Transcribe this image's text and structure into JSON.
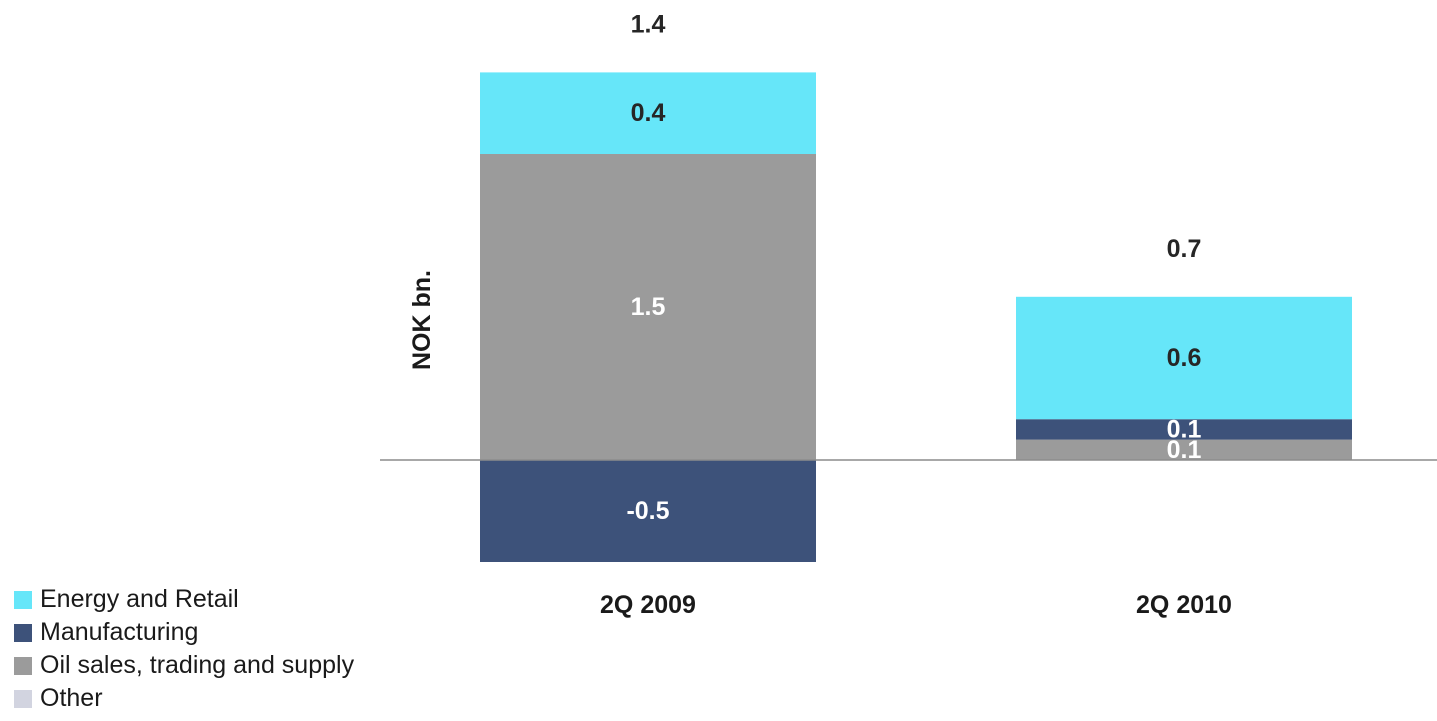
{
  "chart_data": {
    "type": "bar",
    "stacked": true,
    "title": "",
    "xlabel": "",
    "ylabel": "NOK bn.",
    "ylim": [
      -0.75,
      1.65
    ],
    "grid": false,
    "legend_position": "bottom-left",
    "categories": [
      "2Q 2009",
      "2Q 2010"
    ],
    "totals": [
      {
        "value": 1.4,
        "label": "1.4"
      },
      {
        "value": 0.7,
        "label": "0.7"
      }
    ],
    "series": [
      {
        "name": "Energy and Retail",
        "color": "#66E6F9",
        "label_color": "#262626",
        "values": [
          0.4,
          0.6
        ],
        "labels": [
          "0.4",
          "0.6"
        ]
      },
      {
        "name": "Manufacturing",
        "color": "#3D527A",
        "label_color": "#FFFFFF",
        "values": [
          -0.5,
          0.1
        ],
        "labels": [
          "-0.5",
          "0.1"
        ]
      },
      {
        "name": "Oil sales, trading and supply",
        "color": "#9B9B9B",
        "label_color": "#FFFFFF",
        "values": [
          1.5,
          0.1
        ],
        "labels": [
          "1.5",
          "0.1"
        ]
      },
      {
        "name": "Other",
        "color": "#D2D4E0",
        "label_color": "#262626",
        "values": [
          0,
          0
        ],
        "labels": [
          "",
          ""
        ]
      }
    ]
  }
}
